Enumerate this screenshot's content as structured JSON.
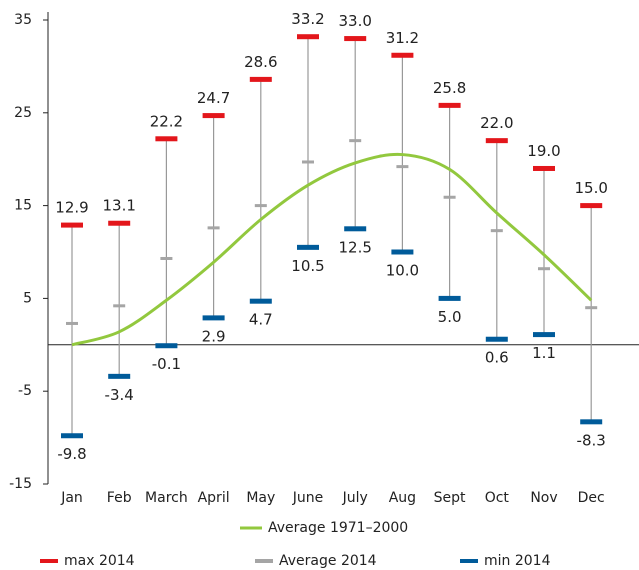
{
  "chart_data": {
    "type": "line",
    "categories": [
      "Jan",
      "Feb",
      "March",
      "April",
      "May",
      "June",
      "July",
      "Aug",
      "Sept",
      "Oct",
      "Nov",
      "Dec"
    ],
    "ylim": [
      -15,
      35
    ],
    "yticks": [
      35,
      25,
      15,
      5,
      -5,
      -15
    ],
    "series": [
      {
        "name": "Average 1971–2000",
        "color": "#92c83e",
        "style": "smooth-line",
        "values": [
          0,
          1.4,
          4.8,
          8.9,
          13.5,
          17.2,
          19.6,
          20.5,
          18.9,
          14.2,
          9.7,
          4.8
        ]
      },
      {
        "name": "max 2014",
        "color": "#e3161b",
        "style": "dash",
        "label_side": "above",
        "values": [
          12.9,
          13.1,
          22.2,
          24.7,
          28.6,
          33.2,
          33.0,
          31.2,
          25.8,
          22.0,
          19.0,
          15.0
        ],
        "value_labels": [
          "12.9",
          "13.1",
          "22.2",
          "24.7",
          "28.6",
          "33.2",
          "33.0",
          "31.2",
          "25.8",
          "22.0",
          "19.0",
          "15.0"
        ]
      },
      {
        "name": "Average 2014",
        "color": "#a5a5a5",
        "style": "small-dash",
        "values": [
          2.3,
          4.2,
          9.3,
          12.6,
          15.0,
          19.7,
          22.0,
          19.2,
          15.9,
          12.3,
          8.2,
          4.0
        ]
      },
      {
        "name": "min 2014",
        "color": "#005b9a",
        "style": "dash",
        "label_side": "below",
        "values": [
          -9.8,
          -3.4,
          -0.1,
          2.9,
          4.7,
          10.5,
          12.5,
          10.0,
          5.0,
          0.6,
          1.1,
          -8.3
        ],
        "value_labels": [
          "-9.8",
          "-3.4",
          "-0.1",
          "2.9",
          "4.7",
          "10.5",
          "12.5",
          "10.0",
          "5.0",
          "0.6",
          "1.1",
          "-8.3"
        ]
      }
    ]
  }
}
